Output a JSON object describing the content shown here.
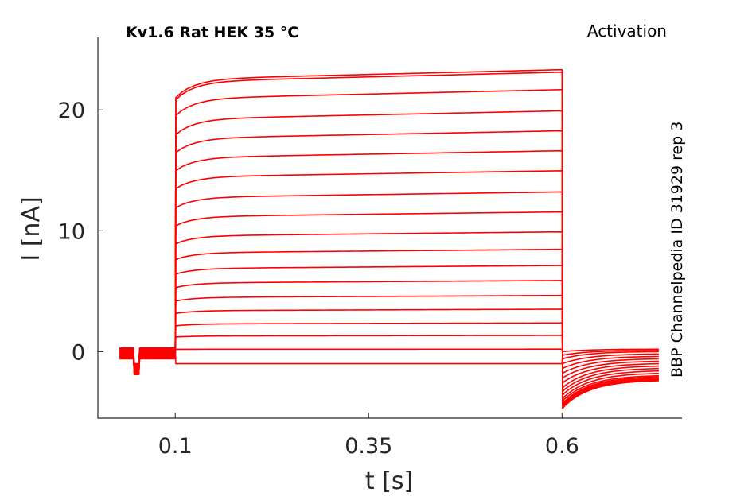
{
  "chart_data": {
    "type": "line",
    "title": "Kv1.6  Rat  HEK  35 °C",
    "protocol_label": "Activation",
    "side_label": "BBP Channelpedia ID 31929 rep 3",
    "xlabel": "t [s]",
    "ylabel": "I [nA]",
    "xlim": [
      0.0,
      0.755
    ],
    "ylim": [
      -5.5,
      26
    ],
    "xticks": [
      0.1,
      0.35,
      0.6
    ],
    "xtick_labels": [
      "0.1",
      "0.35",
      "0.6"
    ],
    "yticks": [
      0,
      10,
      20
    ],
    "ytick_labels": [
      "0",
      "10",
      "20"
    ],
    "grid": false,
    "line_color": "#ff0000",
    "trace_count": 19,
    "step_start_s": 0.1,
    "step_end_s": 0.6,
    "prepulse_time_s": 0.05,
    "steady_state_currents_nA": [
      -1.0,
      0.2,
      1.3,
      2.3,
      3.4,
      4.5,
      5.7,
      6.9,
      8.2,
      9.6,
      11.2,
      12.8,
      14.5,
      16.1,
      17.7,
      19.3,
      21.0,
      22.4,
      22.6
    ],
    "tail_peak_currents_nA": [
      0.0,
      -0.3,
      -0.6,
      -1.0,
      -1.4,
      -1.8,
      -2.2,
      -2.6,
      -3.0,
      -3.3,
      -3.6,
      -3.9,
      -4.1,
      -4.3,
      -4.4,
      -4.5,
      -4.6,
      -4.7,
      -4.7
    ],
    "tail_end_currents_nA": [
      0.2,
      0.1,
      0.0,
      -0.2,
      -0.4,
      -0.6,
      -0.8,
      -1.0,
      -1.2,
      -1.4,
      -1.6,
      -1.8,
      -2.0,
      -2.1,
      -2.2,
      -2.3,
      -2.3,
      -2.4,
      -2.4
    ]
  }
}
